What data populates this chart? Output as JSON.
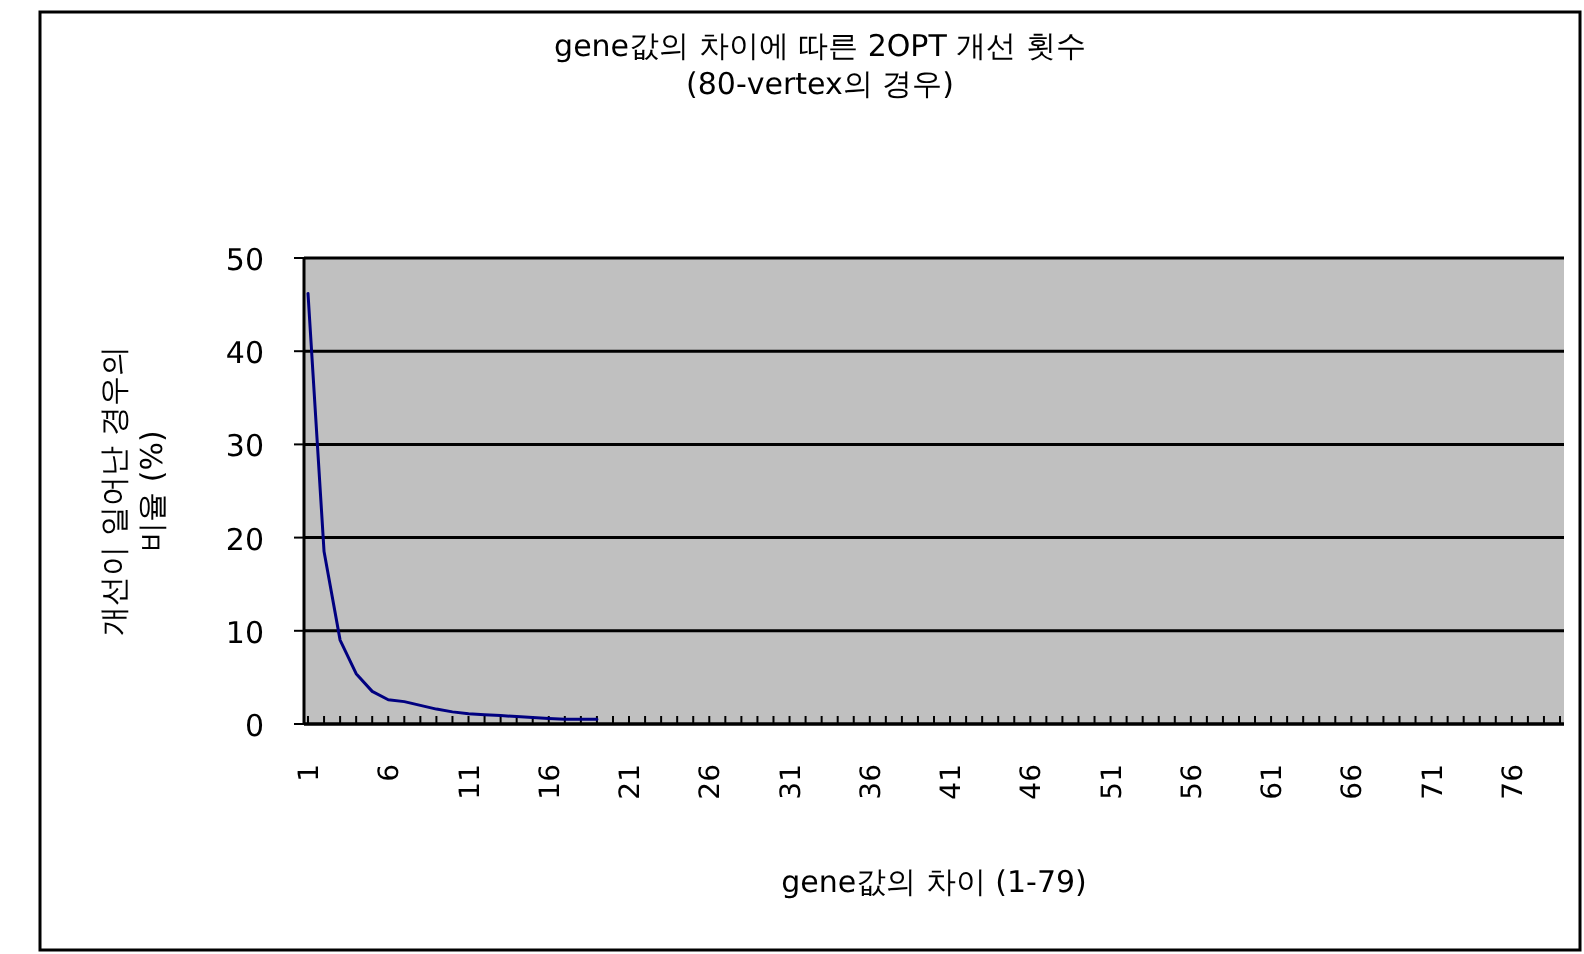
{
  "chart_data": {
    "type": "line",
    "title": "gene값의 차이에 따른 2OPT 개선 횟수\n(80-vertex의 경우)",
    "xlabel": "gene값의 차이 (1-79)",
    "ylabel": "개선이 일어난 경우의\n비율 (%)",
    "categories": [
      "1",
      null,
      null,
      null,
      null,
      "6",
      null,
      null,
      null,
      null,
      "11",
      null,
      null,
      null,
      null,
      "16",
      null,
      null,
      null,
      null,
      "21",
      null,
      null,
      null,
      null,
      "26",
      null,
      null,
      null,
      null,
      "31",
      null,
      null,
      null,
      null,
      "36",
      null,
      null,
      null,
      null,
      "41",
      null,
      null,
      null,
      null,
      "46",
      null,
      null,
      null,
      null,
      "51",
      null,
      null,
      null,
      null,
      "56",
      null,
      null,
      null,
      null,
      "61",
      null,
      null,
      null,
      null,
      "66",
      null,
      null,
      null,
      null,
      "71",
      null,
      null,
      null,
      null,
      "76",
      null,
      null,
      null
    ],
    "series": [
      {
        "color": "#000080",
        "values": [
          46.2,
          18.5,
          9.0,
          5.4,
          3.5,
          2.6,
          2.4,
          2.0,
          1.6,
          1.3,
          1.1,
          1.0,
          0.9,
          0.8,
          0.7,
          0.6,
          0.5,
          0.5,
          0.5,
          null,
          null,
          null,
          null,
          null,
          null,
          null,
          null,
          null,
          null,
          null,
          null,
          null,
          null,
          null,
          null,
          null,
          null,
          null,
          null,
          null,
          null,
          null,
          null,
          null,
          null,
          null,
          null,
          null,
          null,
          null,
          null,
          null,
          null,
          null,
          null,
          null,
          null,
          null,
          null,
          null,
          null,
          null,
          null,
          null,
          null,
          null,
          null,
          null,
          null,
          null,
          null,
          null,
          null,
          null,
          null,
          null,
          null,
          null,
          null
        ]
      }
    ],
    "ylim": [
      0,
      50
    ],
    "yticks": [
      0,
      10,
      20,
      30,
      40,
      50
    ],
    "grid": "y",
    "marker": "none",
    "line_style": "solid"
  }
}
